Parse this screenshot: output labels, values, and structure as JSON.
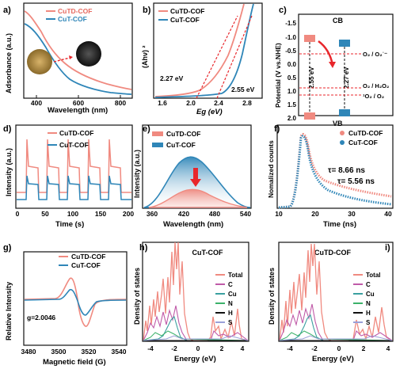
{
  "figure": {
    "panels": {
      "a": {
        "label": "a)",
        "xlabel": "Wavelength (nm)",
        "ylabel": "Adsorbance (a.u.)",
        "xticks": [
          "400",
          "600",
          "800"
        ],
        "legend": [
          "CuTD-COF",
          "CuT-COF"
        ]
      },
      "b": {
        "label": "b)",
        "xlabel": "Eg (eV)",
        "ylabel": "(Ahν) ²",
        "xticks": [
          "1.6",
          "2.0",
          "2.4",
          "2.8"
        ],
        "legend": [
          "CuTD-COF",
          "CuT-COF"
        ],
        "annotations": [
          "2.27 eV",
          "2.55 eV"
        ]
      },
      "c": {
        "label": "c)",
        "ylabel": "Potential (V vs.NHE)",
        "yticks": [
          "-1.5",
          "-1.0",
          "-0.5",
          "0.0",
          "0.5",
          "1.0",
          "1.5",
          "2.0"
        ],
        "cb": "CB",
        "vb": "VB",
        "gap1": "2.55 eV",
        "gap2": "2.27 eV",
        "lines": [
          "O₂ / O₂˙⁻",
          "O₂ / H₂O₂",
          "¹O₂ / O₂"
        ]
      },
      "d": {
        "label": "d)",
        "xlabel": "Time (s)",
        "ylabel": "Intensity (a.u.)",
        "xticks": [
          "0",
          "50",
          "100",
          "150",
          "200"
        ],
        "legend": [
          "CuTD-COF",
          "CuT-COF"
        ]
      },
      "e": {
        "label": "e)",
        "xlabel": "Wavelength (nm)",
        "ylabel": "Intensity (a.u.)",
        "xticks": [
          "360",
          "420",
          "480",
          "540"
        ],
        "legend": [
          "CuTD-COF",
          "CuT-COF"
        ]
      },
      "f": {
        "label": "f)",
        "xlabel": "Time (ns)",
        "ylabel": "Nomalized counts",
        "xticks": [
          "10",
          "20",
          "30",
          "40"
        ],
        "legend": [
          "CuTD-COF",
          "CuT-COF"
        ],
        "tau1": "τ= 8.66 ns",
        "tau2": "τ= 5.56 ns"
      },
      "g": {
        "label": "g)",
        "xlabel": "Magnetic field (G)",
        "ylabel": "Relative Intensity",
        "xticks": [
          "3480",
          "3500",
          "3520",
          "3540"
        ],
        "legend": [
          "CuTD-COF",
          "CuT-COF"
        ],
        "gvalue": "g=2.0046"
      },
      "h": {
        "label": "h)",
        "title": "CuT-COF",
        "xlabel": "Energy (eV)",
        "ylabel": "Density of states",
        "xticks": [
          "-4",
          "-2",
          "0",
          "2",
          "4"
        ],
        "legend": [
          "Total",
          "C",
          "Cu",
          "N",
          "H",
          "S"
        ]
      },
      "i": {
        "label": "i)",
        "title": "CuTD-COF",
        "xlabel": "Energy (eV)",
        "ylabel": "Density of states",
        "xticks": [
          "-4",
          "-2",
          "0",
          "2",
          "4"
        ],
        "legend": [
          "Total",
          "C",
          "Cu",
          "N",
          "H",
          "S"
        ]
      }
    },
    "colors": {
      "cutd": "#f08a80",
      "cut": "#2f86b8",
      "red_dash": "#e8262b",
      "c": "#c05aa8",
      "cu": "#3aa0a0",
      "n": "#3bb26a",
      "h": "#111111",
      "s": "#9aa0d8"
    }
  }
}
